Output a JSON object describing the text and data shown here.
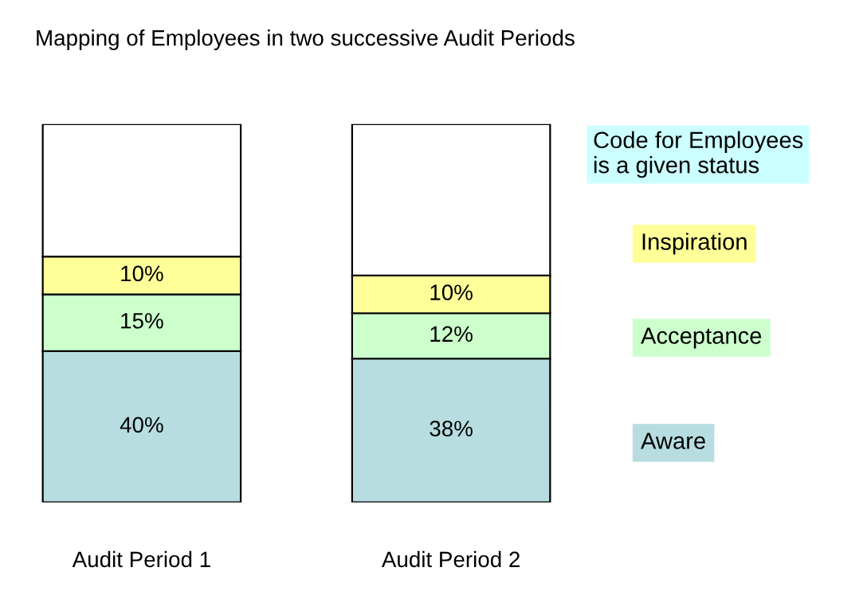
{
  "chart_data": {
    "type": "bar",
    "stacked": true,
    "title": "Mapping of Employees in two successive Audit Periods",
    "legend_title": "Code for Employees\nis a given status",
    "legend": "right",
    "grid": false,
    "categories": [
      "Audit Period 1",
      "Audit Period 2"
    ],
    "series": [
      {
        "name": "Aware",
        "color": "#b7dde0",
        "values": [
          40,
          38
        ],
        "value_labels": [
          "40%",
          "38%"
        ]
      },
      {
        "name": "Acceptance",
        "color": "#ccffcc",
        "values": [
          15,
          12
        ],
        "value_labels": [
          "15%",
          "12%"
        ]
      },
      {
        "name": "Inspiration",
        "color": "#ffff99",
        "values": [
          10,
          10
        ],
        "value_labels": [
          "10%",
          "10%"
        ]
      },
      {
        "color": "#ffffff",
        "values": [
          35,
          40
        ],
        "value_labels": [
          null,
          null
        ]
      }
    ]
  }
}
